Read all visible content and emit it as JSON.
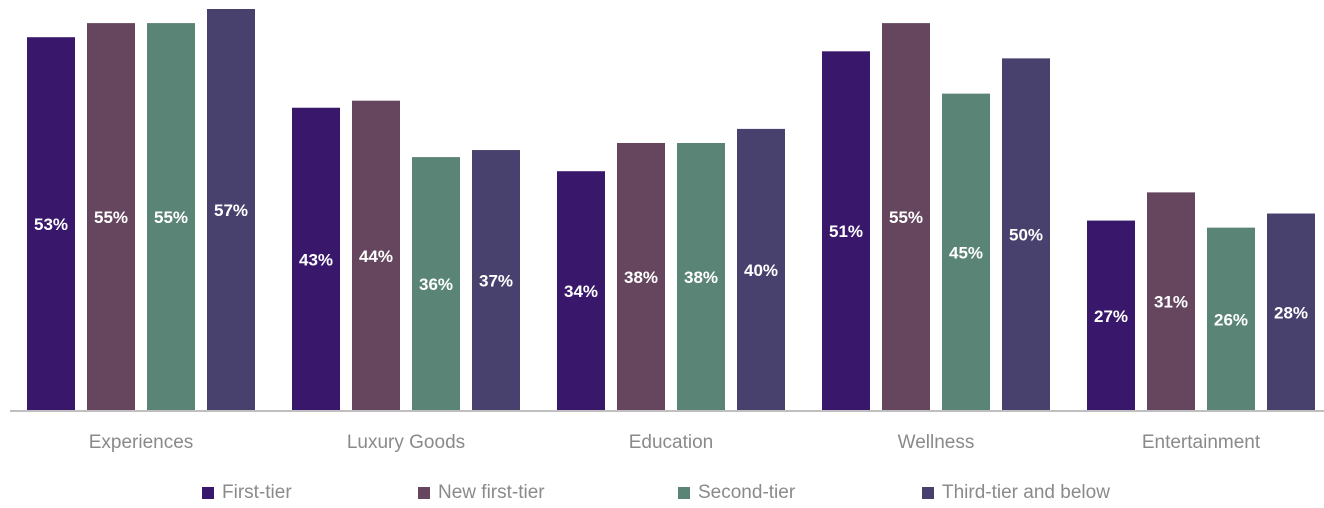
{
  "chart_data": {
    "type": "bar",
    "categories": [
      "Experiences",
      "Luxury Goods",
      "Education",
      "Wellness",
      "Entertainment"
    ],
    "series": [
      {
        "name": "First-tier",
        "color": "#39186b",
        "values": [
          53,
          43,
          34,
          51,
          27
        ]
      },
      {
        "name": "New first-tier",
        "color": "#65465e",
        "values": [
          55,
          44,
          38,
          55,
          31
        ]
      },
      {
        "name": "Second-tier",
        "color": "#5a8475",
        "values": [
          55,
          36,
          38,
          45,
          26
        ]
      },
      {
        "name": "Third-tier and below",
        "color": "#48416e",
        "values": [
          57,
          37,
          40,
          50,
          28
        ]
      }
    ],
    "value_suffix": "%",
    "ylim": [
      0,
      57
    ],
    "grid": false,
    "legend_position": "bottom"
  }
}
